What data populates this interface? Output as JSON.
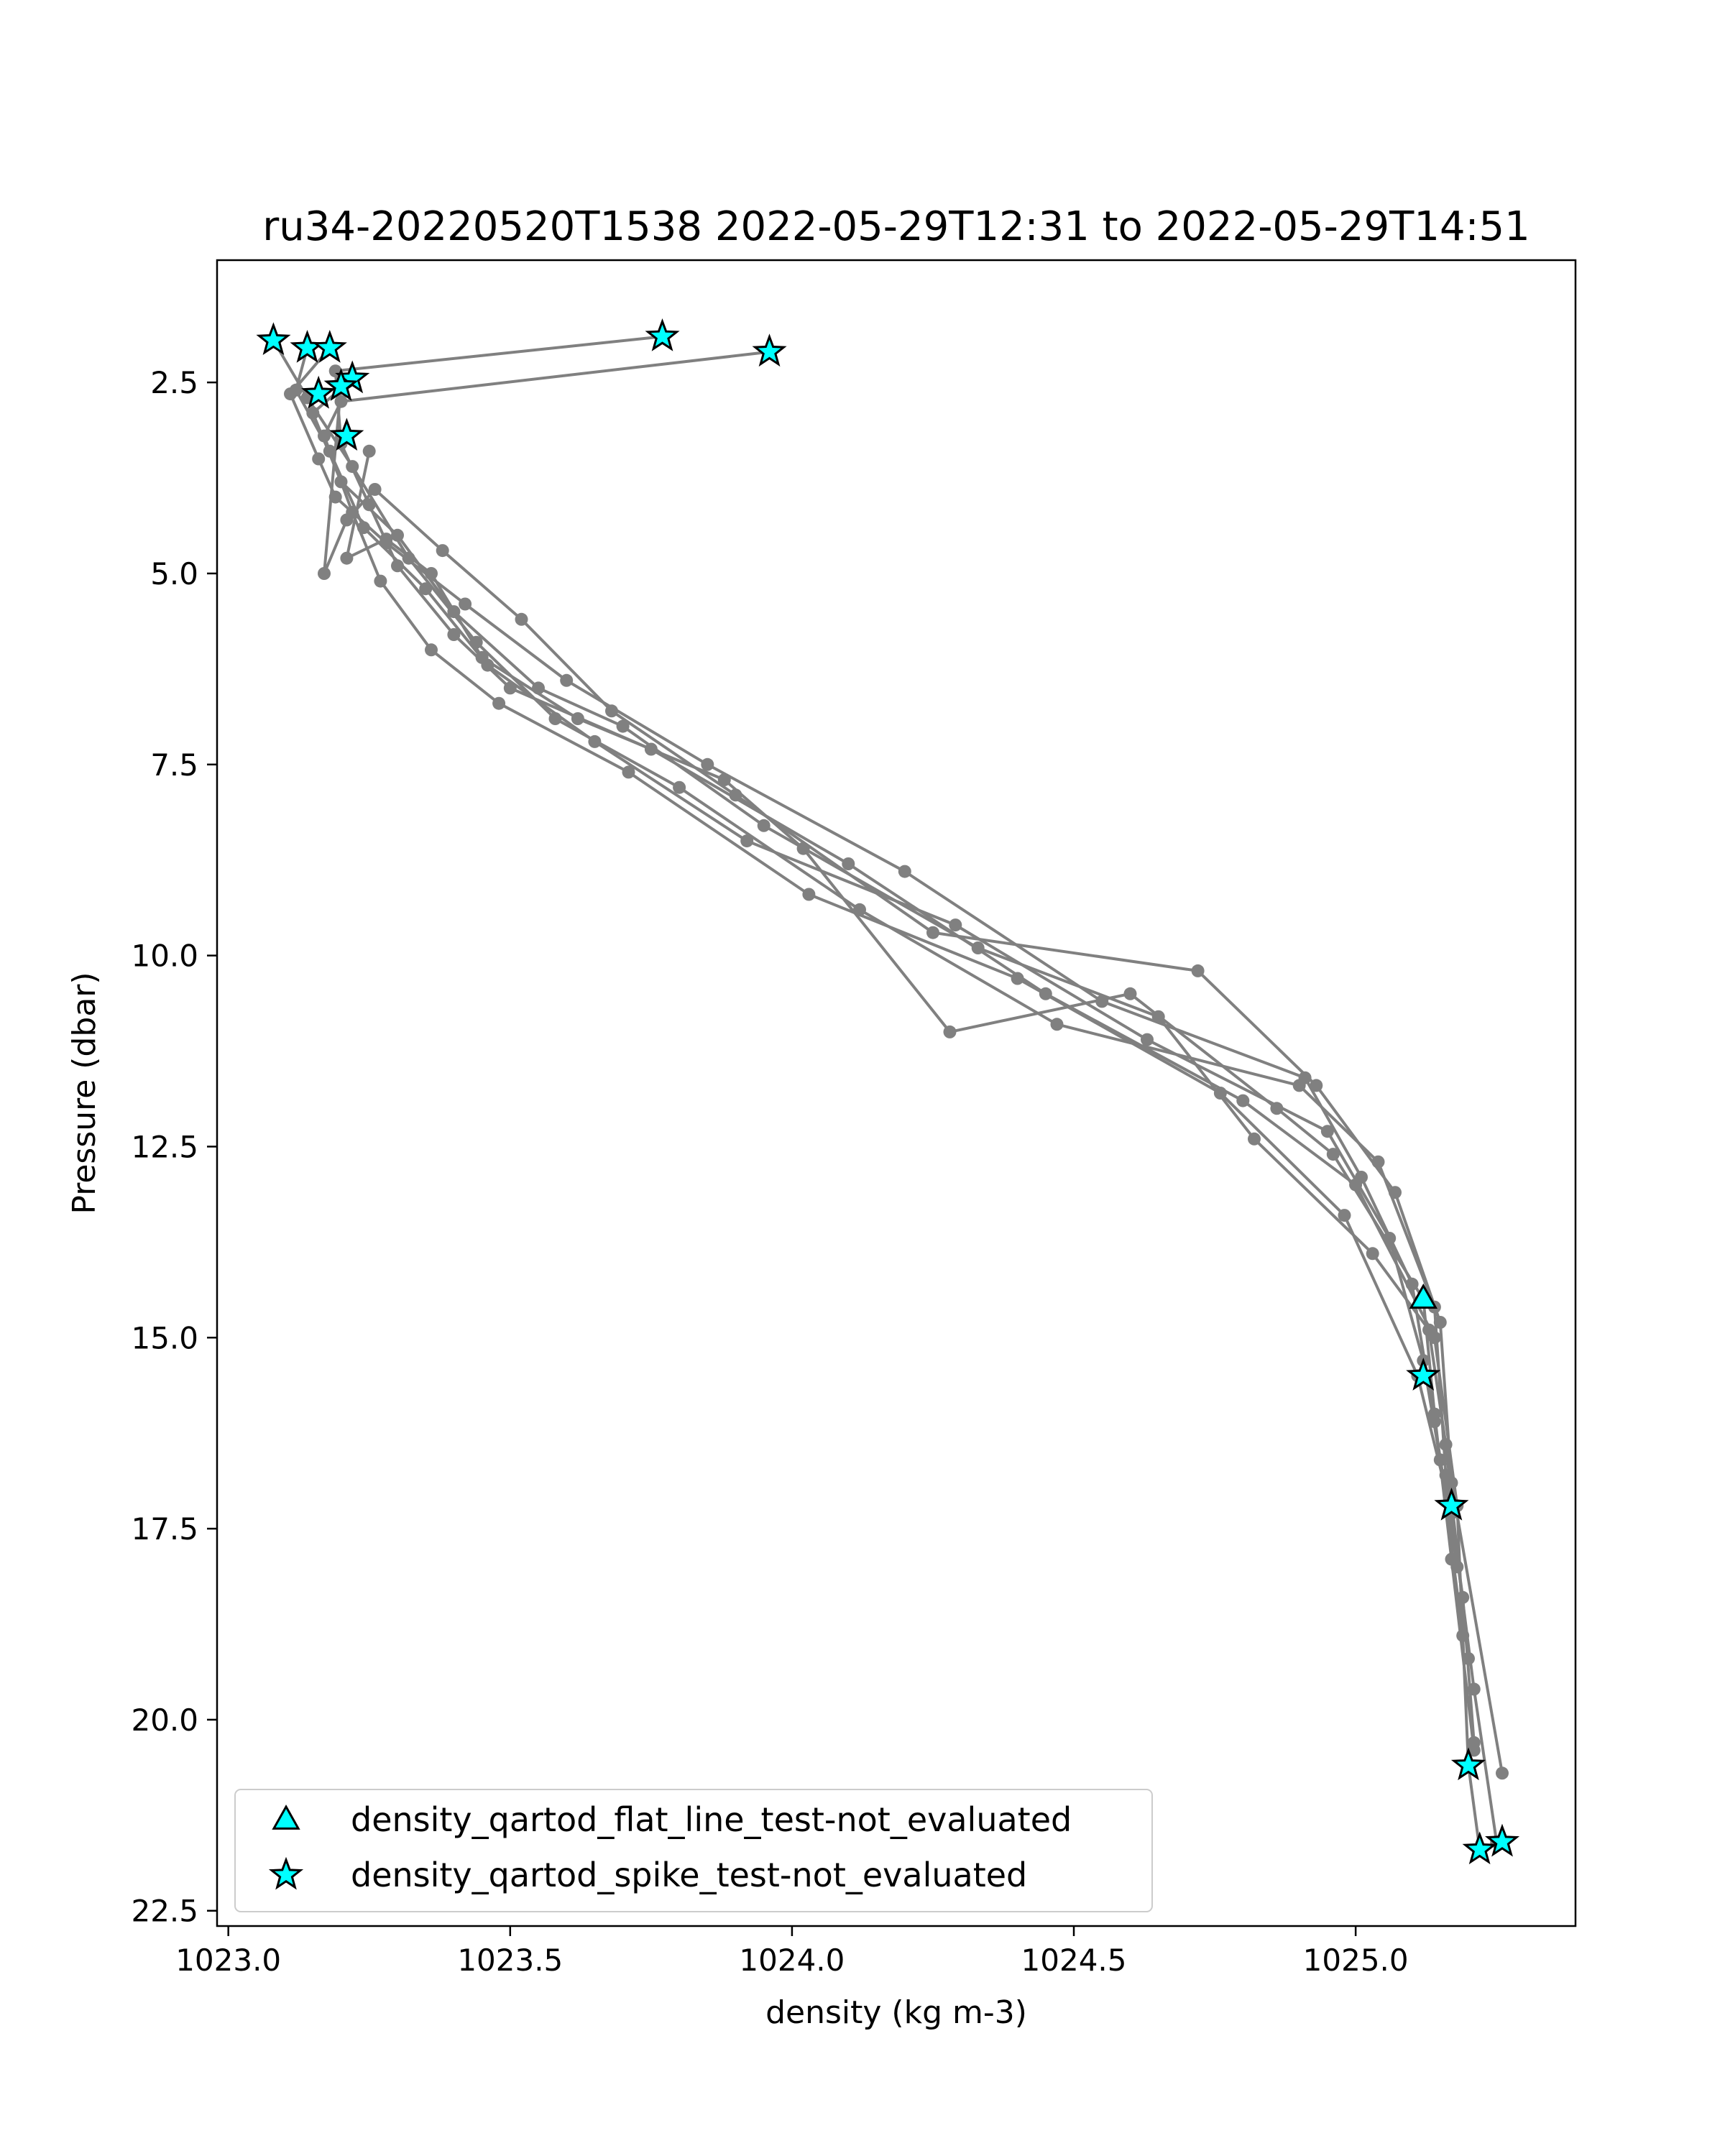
{
  "chart_data": {
    "type": "line",
    "title": "ru34-20220520T1538 2022-05-29T12:31 to 2022-05-29T14:51",
    "xlabel": "density (kg m-3)",
    "ylabel": "Pressure (dbar)",
    "xlim": [
      1022.98,
      1025.39
    ],
    "ylim": [
      22.7,
      0.9
    ],
    "y_inverted": true,
    "grid": false,
    "xticks": [
      {
        "value": 1023.0,
        "label": "1023.0"
      },
      {
        "value": 1023.5,
        "label": "1023.5"
      },
      {
        "value": 1024.0,
        "label": "1024.0"
      },
      {
        "value": 1024.5,
        "label": "1024.5"
      },
      {
        "value": 1025.0,
        "label": "1025.0"
      }
    ],
    "yticks": [
      {
        "value": 2.5,
        "label": "2.5"
      },
      {
        "value": 5.0,
        "label": "5.0"
      },
      {
        "value": 7.5,
        "label": "7.5"
      },
      {
        "value": 10.0,
        "label": "10.0"
      },
      {
        "value": 12.5,
        "label": "12.5"
      },
      {
        "value": 15.0,
        "label": "15.0"
      },
      {
        "value": 17.5,
        "label": "17.5"
      },
      {
        "value": 20.0,
        "label": "20.0"
      },
      {
        "value": 22.5,
        "label": "22.5"
      }
    ],
    "colors": {
      "profile": "#808080",
      "flag_fill": "#00ffff",
      "flag_edge": "#000000"
    },
    "series": [
      {
        "style": "profile",
        "x": [
          1023.77,
          1023.19,
          1023.2,
          1023.25,
          1023.3,
          1023.4,
          1023.5,
          1023.75,
          1024.1,
          1024.45,
          1024.8,
          1025.0,
          1025.14,
          1025.18,
          1025.2,
          1025.22
        ],
        "y": [
          1.9,
          2.35,
          3.3,
          4.1,
          4.9,
          5.8,
          6.5,
          7.3,
          8.8,
          10.5,
          11.9,
          13.0,
          15.0,
          17.2,
          20.6,
          21.7
        ]
      },
      {
        "style": "profile",
        "x": [
          1023.96,
          1023.2,
          1023.17,
          1023.22,
          1023.27,
          1023.36,
          1023.48,
          1023.71,
          1024.03,
          1024.4,
          1024.76,
          1024.98,
          1025.11,
          1025.17,
          1025.21,
          1025.25
        ],
        "y": [
          2.1,
          2.75,
          3.2,
          4.2,
          5.1,
          6.0,
          6.7,
          7.6,
          9.2,
          10.3,
          11.8,
          13.4,
          15.5,
          17.3,
          19.6,
          21.6
        ]
      },
      {
        "style": "profile",
        "x": [
          1023.08,
          1023.14,
          1023.22,
          1023.32,
          1023.44,
          1023.58,
          1023.8,
          1024.12,
          1024.47,
          1024.9,
          1025.04,
          1025.14,
          1025.16,
          1025.19,
          1025.21
        ],
        "y": [
          1.95,
          2.7,
          3.6,
          4.8,
          5.9,
          6.9,
          7.8,
          9.4,
          10.9,
          11.7,
          12.7,
          14.6,
          16.8,
          18.4,
          20.3
        ]
      },
      {
        "style": "profile",
        "x": [
          1023.14,
          1023.12,
          1023.18,
          1023.24,
          1023.35,
          1023.46,
          1023.65,
          1023.92,
          1024.29,
          1024.63,
          1024.95,
          1025.06,
          1025.12,
          1025.15,
          1025.19
        ],
        "y": [
          2.05,
          2.6,
          3.4,
          4.4,
          5.2,
          6.2,
          7.2,
          8.5,
          9.6,
          11.1,
          12.3,
          13.7,
          15.3,
          16.6,
          18.9
        ]
      },
      {
        "style": "profile",
        "x": [
          1023.18,
          1023.11,
          1023.16,
          1023.19,
          1023.28,
          1023.42,
          1023.6,
          1023.85,
          1024.2,
          1024.55,
          1024.91,
          1025.01,
          1025.1,
          1025.14,
          1025.18
        ],
        "y": [
          2.05,
          2.65,
          3.5,
          4.0,
          4.6,
          5.4,
          6.4,
          7.5,
          8.9,
          10.6,
          11.6,
          12.9,
          14.3,
          16.1,
          18.0
        ]
      },
      {
        "style": "profile",
        "x": [
          1023.22,
          1023.15,
          1023.2,
          1023.3,
          1023.4,
          1023.55,
          1023.7,
          1023.95,
          1024.33,
          1024.65,
          1024.82,
          1025.03,
          1025.13,
          1025.16,
          1025.2
        ],
        "y": [
          2.45,
          2.9,
          3.8,
          4.5,
          5.5,
          6.5,
          7.0,
          8.3,
          9.9,
          10.8,
          12.4,
          13.9,
          14.9,
          16.4,
          19.2
        ]
      },
      {
        "style": "profile",
        "x": [
          1023.2,
          1023.17,
          1023.21,
          1023.26,
          1023.38,
          1023.52,
          1023.68,
          1023.9,
          1024.25,
          1024.72,
          1024.93,
          1025.07,
          1025.15,
          1025.17,
          1025.26
        ],
        "y": [
          2.55,
          5.0,
          4.3,
          3.9,
          4.7,
          5.6,
          6.8,
          7.9,
          9.7,
          10.2,
          11.7,
          13.1,
          14.8,
          16.9,
          20.7
        ]
      },
      {
        "style": "profile",
        "x": [
          1023.25,
          1023.21,
          1023.28,
          1023.36,
          1023.45,
          1023.62,
          1023.88,
          1024.02,
          1024.28,
          1024.6,
          1024.86,
          1024.96,
          1025.12,
          1025.14,
          1025.17,
          1025.21
        ],
        "y": [
          3.4,
          4.8,
          4.55,
          5.0,
          6.1,
          6.9,
          7.7,
          8.6,
          11.0,
          10.5,
          12.0,
          12.6,
          14.5,
          16.0,
          17.9,
          20.4
        ]
      }
    ],
    "flags": [
      {
        "name": "density_qartod_flat_line_test-not_evaluated",
        "marker": "triangle",
        "points": [
          {
            "x": 1025.12,
            "y": 14.5
          }
        ]
      },
      {
        "name": "density_qartod_spike_test-not_evaluated",
        "marker": "star",
        "points": [
          {
            "x": 1023.08,
            "y": 1.95
          },
          {
            "x": 1023.14,
            "y": 2.05
          },
          {
            "x": 1023.18,
            "y": 2.05
          },
          {
            "x": 1023.77,
            "y": 1.9
          },
          {
            "x": 1023.96,
            "y": 2.1
          },
          {
            "x": 1023.22,
            "y": 2.45
          },
          {
            "x": 1023.2,
            "y": 2.55
          },
          {
            "x": 1023.16,
            "y": 2.65
          },
          {
            "x": 1023.21,
            "y": 3.2
          },
          {
            "x": 1025.12,
            "y": 15.5
          },
          {
            "x": 1025.17,
            "y": 17.2
          },
          {
            "x": 1025.2,
            "y": 20.6
          },
          {
            "x": 1025.22,
            "y": 21.7
          },
          {
            "x": 1025.26,
            "y": 21.6
          }
        ]
      }
    ]
  }
}
